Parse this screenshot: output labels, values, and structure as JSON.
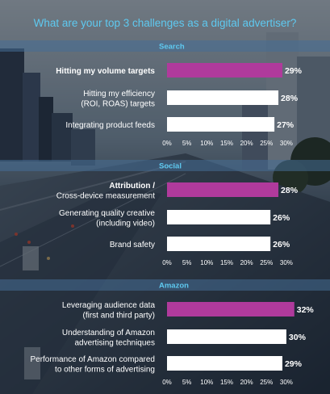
{
  "title": "What are your top 3 challenges as a digital advertiser?",
  "colors": {
    "accent": "#5ec9f0",
    "highlight_bar": "#b03a9c",
    "bar": "#ffffff",
    "text": "#ffffff"
  },
  "chart_data": [
    {
      "type": "bar",
      "orientation": "horizontal",
      "title": "Search",
      "categories": [
        "Hitting my volume targets",
        "Hitting my efficiency\n(ROI, ROAS) targets",
        "Integrating product feeds"
      ],
      "values": [
        29,
        28,
        27
      ],
      "value_labels": [
        "29%",
        "28%",
        "27%"
      ],
      "highlight": [
        true,
        false,
        false
      ],
      "xlim": [
        0,
        30
      ],
      "x_ticks": [
        "0%",
        "5%",
        "10%",
        "15%",
        "20%",
        "25%",
        "30%"
      ]
    },
    {
      "type": "bar",
      "orientation": "horizontal",
      "title": "Social",
      "categories": [
        "Attribution /\nCross-device measurement",
        "Generating quality creative\n(including video)",
        "Brand safety"
      ],
      "values": [
        28,
        26,
        26
      ],
      "value_labels": [
        "28%",
        "26%",
        "26%"
      ],
      "highlight": [
        true,
        false,
        false
      ],
      "xlim": [
        0,
        30
      ],
      "x_ticks": [
        "0%",
        "5%",
        "10%",
        "15%",
        "20%",
        "25%",
        "30%"
      ]
    },
    {
      "type": "bar",
      "orientation": "horizontal",
      "title": "Amazon",
      "categories": [
        "Leveraging audience data\n(first and third party)",
        "Understanding of Amazon\nadvertising techniques",
        "Performance of Amazon compared\nto other forms of advertising"
      ],
      "values": [
        32,
        30,
        29
      ],
      "value_labels": [
        "32%",
        "30%",
        "29%"
      ],
      "highlight": [
        true,
        false,
        false
      ],
      "xlim": [
        0,
        30
      ],
      "x_ticks": [
        "0%",
        "5%",
        "10%",
        "15%",
        "20%",
        "25%",
        "30%"
      ]
    }
  ]
}
